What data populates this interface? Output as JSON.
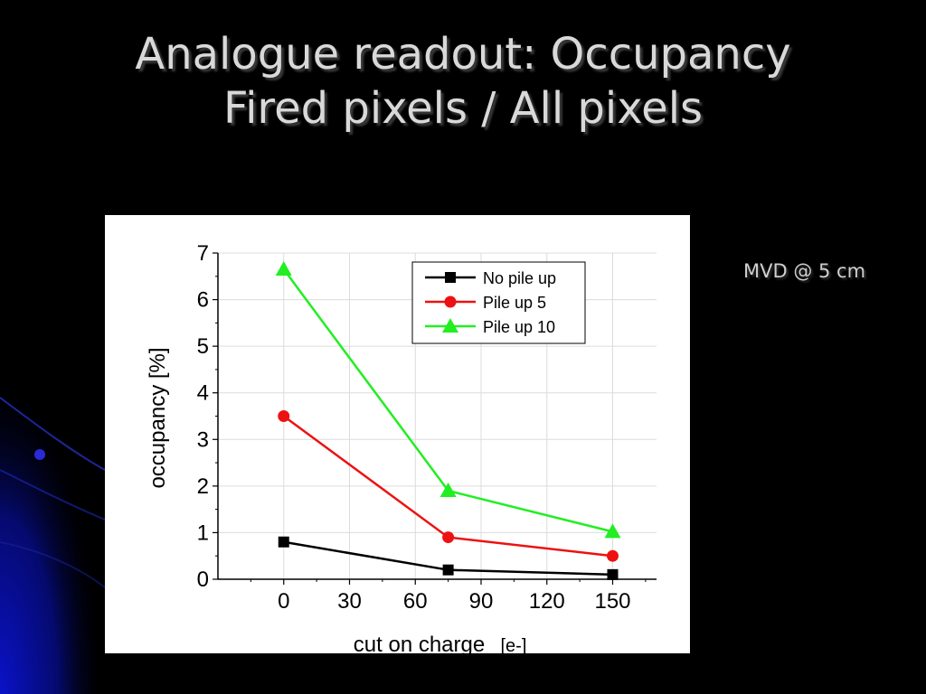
{
  "slide": {
    "title_line1": "Analogue readout: Occupancy",
    "title_line2": "Fired pixels / All pixels",
    "side_note": "MVD @ 5 cm"
  },
  "colors": {
    "background": "#000000",
    "title": "#d9d9d9",
    "series_no_pile_up": "#000000",
    "series_pile_up_5": "#ee1111",
    "series_pile_up_10": "#22ee22"
  },
  "chart_data": {
    "type": "line",
    "title": "",
    "xlabel": "cut on charge",
    "xlabel_unit": "[e-]",
    "ylabel": "occupancy [%]",
    "xlim": [
      -30,
      170
    ],
    "ylim": [
      0,
      7
    ],
    "x_ticks": [
      0,
      30,
      60,
      90,
      120,
      150
    ],
    "y_ticks": [
      0,
      1,
      2,
      3,
      4,
      5,
      6,
      7
    ],
    "grid": true,
    "legend_position": "top-right",
    "series": [
      {
        "name": "No pile up",
        "marker": "square",
        "color": "#000000",
        "x": [
          0,
          75,
          150
        ],
        "y": [
          0.8,
          0.2,
          0.1
        ]
      },
      {
        "name": "Pile up 5",
        "marker": "circle",
        "color": "#ee1111",
        "x": [
          0,
          75,
          150
        ],
        "y": [
          3.5,
          0.9,
          0.5
        ]
      },
      {
        "name": "Pile up 10",
        "marker": "triangle",
        "color": "#22ee22",
        "x": [
          0,
          75,
          150
        ],
        "y": [
          6.65,
          1.9,
          1.02
        ]
      }
    ]
  }
}
